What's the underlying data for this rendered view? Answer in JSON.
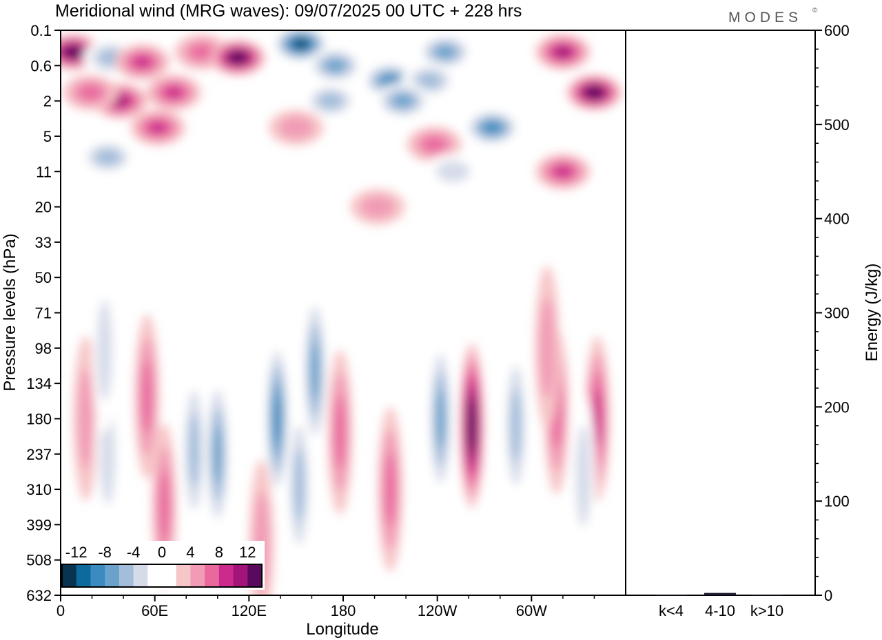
{
  "chart_data": [
    {
      "type": "heatmap",
      "title": "Meridional wind (MRG waves):  09/07/2025  00 UTC  + 228 hrs",
      "xlabel": "Longitude",
      "ylabel": "Pressure levels (hPa)",
      "x_ticks": [
        {
          "label": "0",
          "lon": 0
        },
        {
          "label": "60E",
          "lon": 60
        },
        {
          "label": "120E",
          "lon": 120
        },
        {
          "label": "180",
          "lon": 180
        },
        {
          "label": "120W",
          "lon": 240
        },
        {
          "label": "60W",
          "lon": 300
        }
      ],
      "xlim": [
        0,
        360
      ],
      "y_ticks": [
        "0.1",
        "0.6",
        "2",
        "5",
        "11",
        "20",
        "33",
        "50",
        "71",
        "98",
        "134",
        "180",
        "237",
        "310",
        "399",
        "508",
        "632"
      ],
      "colorbar": {
        "tick_labels": [
          "-12",
          "-8",
          "-4",
          "0",
          "4",
          "8",
          "12"
        ],
        "tick_values": [
          -12,
          -8,
          -4,
          0,
          4,
          8,
          12
        ],
        "colors": [
          "#08344f",
          "#0e6a9b",
          "#3b8bc0",
          "#6aa2cb",
          "#a3bedb",
          "#d6dbe9",
          "#ffffff",
          "#ffffff",
          "#f7c6c8",
          "#f19bb6",
          "#e9699f",
          "#cc2a8c",
          "#a31479",
          "#5a0a5e"
        ]
      },
      "features": [
        {
          "lon": 8,
          "level": "0.3",
          "value": 14
        },
        {
          "lon": 32,
          "level": "0.4",
          "value": -6
        },
        {
          "lon": 52,
          "level": "0.5",
          "value": 8
        },
        {
          "lon": 90,
          "level": "0.3",
          "value": 5
        },
        {
          "lon": 113,
          "level": "0.4",
          "value": 14
        },
        {
          "lon": 153,
          "level": "0.2",
          "value": -14
        },
        {
          "lon": 175,
          "level": "0.6",
          "value": -8
        },
        {
          "lon": 210,
          "level": "1",
          "value": -10
        },
        {
          "lon": 245,
          "level": "0.3",
          "value": -7
        },
        {
          "lon": 235,
          "level": "1",
          "value": -5
        },
        {
          "lon": 320,
          "level": "0.3",
          "value": 10
        },
        {
          "lon": 340,
          "level": "1.5",
          "value": 14
        },
        {
          "lon": 38,
          "level": "2",
          "value": 9
        },
        {
          "lon": 72,
          "level": "1.5",
          "value": 8
        },
        {
          "lon": 19,
          "level": "1.5",
          "value": 6
        },
        {
          "lon": 172,
          "level": "2",
          "value": -6
        },
        {
          "lon": 218,
          "level": "2",
          "value": -8
        },
        {
          "lon": 275,
          "level": "4",
          "value": -9
        },
        {
          "lon": 62,
          "level": "4",
          "value": 7
        },
        {
          "lon": 150,
          "level": "4",
          "value": 4
        },
        {
          "lon": 238,
          "level": "6",
          "value": 6
        },
        {
          "lon": 30,
          "level": "8",
          "value": -6
        },
        {
          "lon": 320,
          "level": "11",
          "value": 7
        },
        {
          "lon": 250,
          "level": "11",
          "value": -4
        },
        {
          "lon": 202,
          "level": "20",
          "value": 3
        },
        {
          "lon": 100,
          "level": "237",
          "value": -8
        },
        {
          "lon": 85,
          "level": "230",
          "value": -6
        },
        {
          "lon": 55,
          "level": "150",
          "value": 6
        },
        {
          "lon": 16,
          "level": "180",
          "value": 4
        },
        {
          "lon": 30,
          "level": "237",
          "value": -4
        },
        {
          "lon": 138,
          "level": "180",
          "value": -10
        },
        {
          "lon": 162,
          "level": "120",
          "value": -7
        },
        {
          "lon": 152,
          "level": "300",
          "value": -6
        },
        {
          "lon": 178,
          "level": "200",
          "value": 6
        },
        {
          "lon": 210,
          "level": "310",
          "value": 6
        },
        {
          "lon": 242,
          "level": "180",
          "value": -8
        },
        {
          "lon": 262,
          "level": "190",
          "value": 14
        },
        {
          "lon": 290,
          "level": "190",
          "value": -6
        },
        {
          "lon": 316,
          "level": "170",
          "value": 6
        },
        {
          "lon": 342,
          "level": "180",
          "value": 8
        },
        {
          "lon": 333,
          "level": "280",
          "value": -4
        },
        {
          "lon": 128,
          "level": "450",
          "value": 4
        },
        {
          "lon": 66,
          "level": "350",
          "value": 5
        },
        {
          "lon": 28,
          "level": "100",
          "value": -4
        },
        {
          "lon": 310,
          "level": "98",
          "value": 4
        }
      ]
    },
    {
      "type": "bar",
      "categories": [
        "k<4",
        "4-10",
        "k>10"
      ],
      "values": [
        0.5,
        2.5,
        0.5
      ],
      "ylabel": "Energy (J/kg)",
      "ylim": [
        0,
        600
      ],
      "y_ticks": [
        "0",
        "100",
        "200",
        "300",
        "400",
        "500",
        "600"
      ],
      "bar_color": "#1a1a2e"
    }
  ],
  "brand": "MODES",
  "brand_mark": "©"
}
